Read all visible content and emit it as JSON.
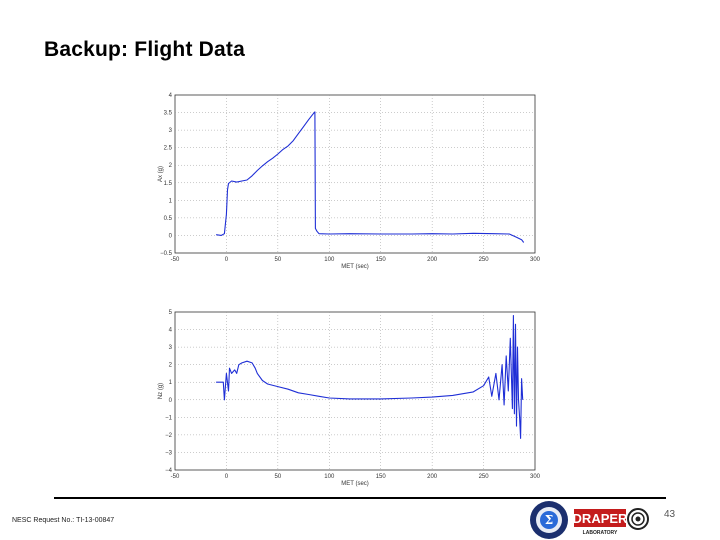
{
  "slide": {
    "title": "Backup: Flight Data",
    "footer": "NESC Request No.: TI-13-00847",
    "page_number": "43",
    "logos": {
      "nesc": "nesc-seal-logo",
      "draper": "DRAPER",
      "draper_sub": "LABORATORY"
    }
  },
  "colors": {
    "series": "#1f2fd6",
    "grid": "#9a9a9a",
    "axis": "#333333"
  },
  "chart_data": [
    {
      "type": "line",
      "xlabel": "MET (sec)",
      "ylabel": "Ax (g)",
      "xlim": [
        -50,
        300
      ],
      "ylim": [
        -0.5,
        4
      ],
      "xticks": [
        -50,
        0,
        50,
        100,
        150,
        200,
        250,
        300
      ],
      "yticks": [
        -0.5,
        0,
        0.5,
        1,
        1.5,
        2,
        2.5,
        3,
        3.5,
        4
      ],
      "ytick_labels": [
        "−0.5",
        "0",
        "0.5",
        "1",
        "1.5",
        "2",
        "2.5",
        "3",
        "3.5",
        "4"
      ],
      "grid": true,
      "series": [
        {
          "x": [
            -10,
            -5,
            -2,
            0,
            1,
            2,
            5,
            10,
            15,
            20,
            25,
            30,
            35,
            40,
            45,
            50,
            55,
            60,
            65,
            70,
            75,
            80,
            84,
            86,
            86.5,
            88,
            90,
            100,
            120,
            150,
            180,
            200,
            220,
            240,
            260,
            275,
            282,
            287,
            289
          ],
          "y": [
            0.02,
            0.0,
            0.05,
            0.6,
            1.3,
            1.48,
            1.55,
            1.52,
            1.55,
            1.58,
            1.7,
            1.85,
            1.98,
            2.1,
            2.2,
            2.32,
            2.45,
            2.55,
            2.7,
            2.9,
            3.1,
            3.3,
            3.45,
            3.52,
            0.2,
            0.12,
            0.05,
            0.04,
            0.05,
            0.04,
            0.04,
            0.05,
            0.04,
            0.06,
            0.05,
            0.04,
            -0.05,
            -0.12,
            -0.2
          ]
        }
      ]
    },
    {
      "type": "line",
      "xlabel": "MET (sec)",
      "ylabel": "Nz (g)",
      "xlim": [
        -50,
        300
      ],
      "ylim": [
        -4,
        5
      ],
      "xticks": [
        -50,
        0,
        50,
        100,
        150,
        200,
        250,
        300
      ],
      "yticks": [
        -4,
        -3,
        -2,
        -1,
        0,
        1,
        2,
        3,
        4,
        5
      ],
      "ytick_labels": [
        "−4",
        "−3",
        "−2",
        "−1",
        "0",
        "1",
        "2",
        "3",
        "4",
        "5"
      ],
      "grid": true,
      "series": [
        {
          "x": [
            -10,
            -5,
            -3,
            -2,
            0,
            2,
            3,
            5,
            8,
            10,
            12,
            15,
            20,
            25,
            28,
            30,
            35,
            40,
            50,
            60,
            70,
            80,
            90,
            100,
            120,
            150,
            180,
            200,
            220,
            240,
            250,
            255,
            258,
            262,
            265,
            268,
            270,
            272,
            274,
            276,
            278,
            279,
            280,
            281,
            282,
            283,
            284,
            285,
            286,
            287,
            288
          ],
          "y": [
            1.0,
            1.0,
            1.0,
            0.0,
            1.5,
            0.5,
            1.8,
            1.5,
            1.7,
            1.5,
            2.0,
            2.1,
            2.2,
            2.1,
            1.8,
            1.5,
            1.1,
            0.9,
            0.75,
            0.6,
            0.4,
            0.3,
            0.2,
            0.1,
            0.05,
            0.05,
            0.1,
            0.15,
            0.25,
            0.45,
            0.8,
            1.3,
            0.2,
            1.5,
            0.0,
            2.0,
            -0.3,
            2.5,
            0.5,
            3.5,
            -0.5,
            4.8,
            -0.8,
            4.3,
            -1.5,
            3.0,
            0.0,
            -1.0,
            -2.2,
            1.2,
            0.0
          ]
        }
      ]
    }
  ]
}
